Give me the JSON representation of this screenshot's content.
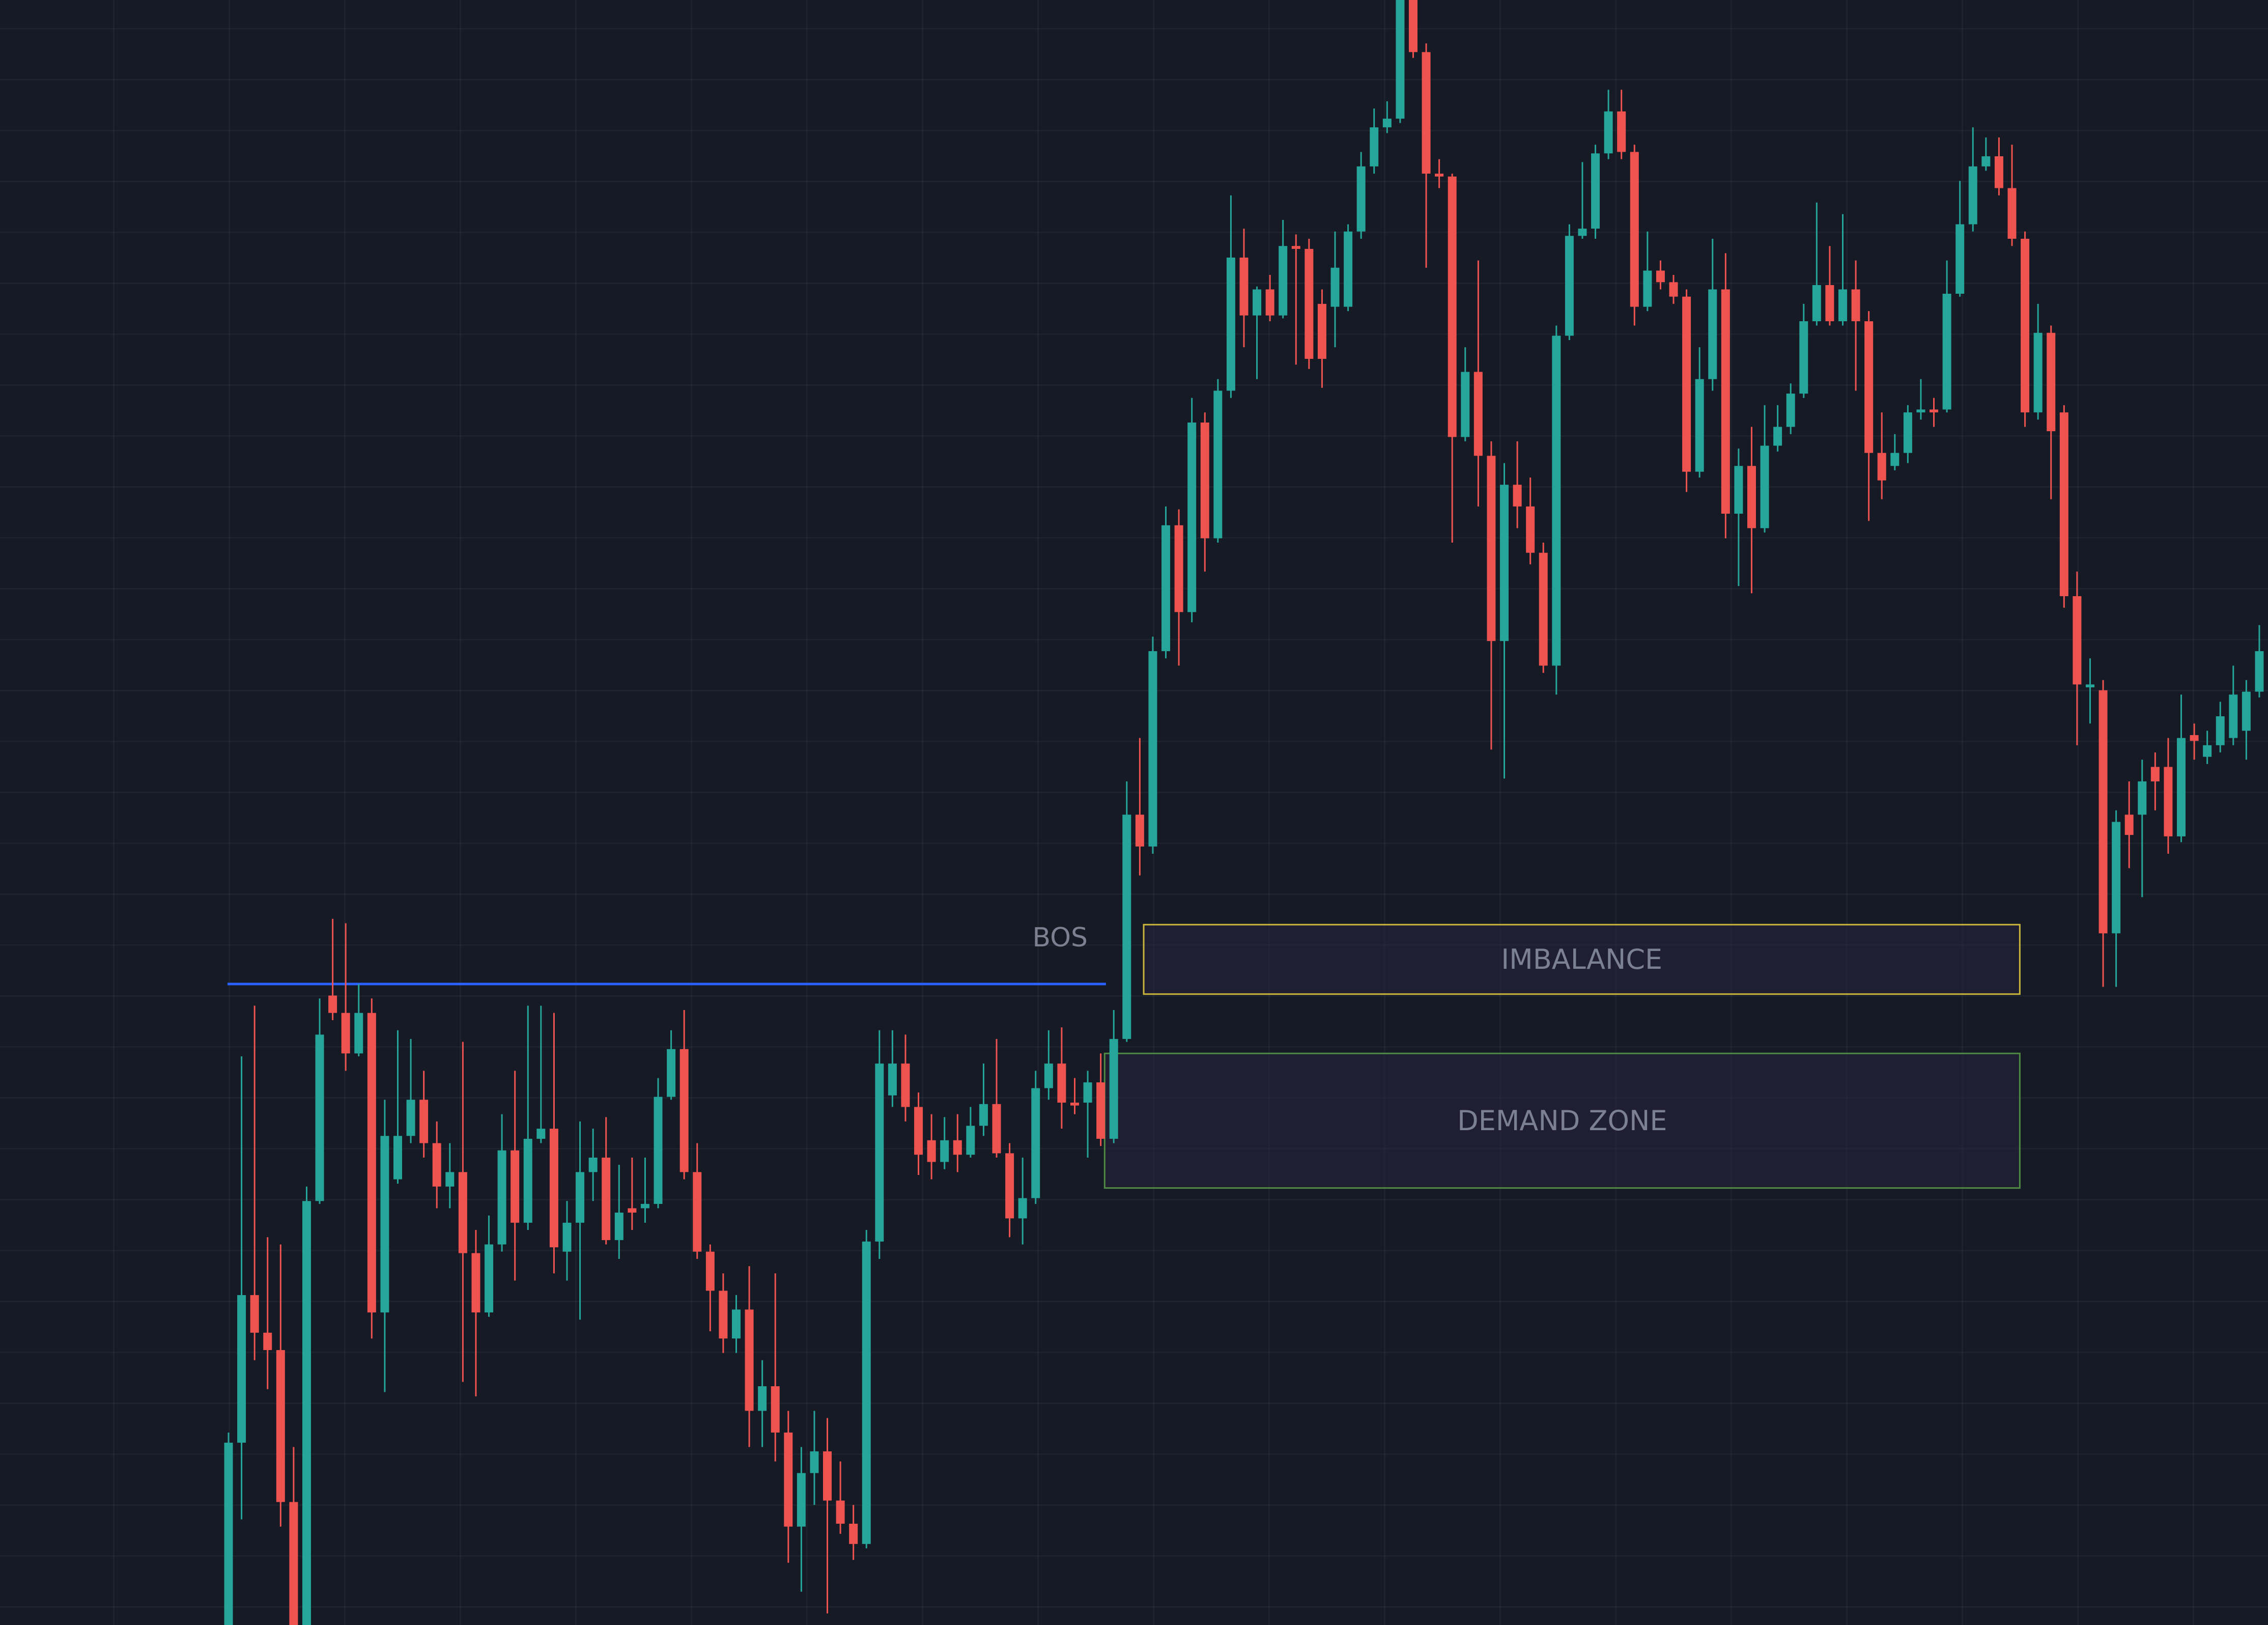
{
  "chart_data": {
    "type": "candlestick",
    "up_color": "#26a69a",
    "down_color": "#ef5350",
    "ylim": [
      0,
      1123
    ],
    "open": [
      0,
      126,
      228,
      202,
      190,
      85,
      0,
      293,
      435,
      423,
      395,
      423,
      216,
      308,
      338,
      363,
      333,
      303,
      313,
      257,
      216,
      263,
      328,
      278,
      336,
      343,
      258,
      278,
      313,
      323,
      266,
      288,
      288,
      291,
      365,
      398,
      313,
      258,
      231,
      198,
      218,
      148,
      165,
      133,
      68,
      105,
      120,
      86,
      70,
      56,
      265,
      366,
      388,
      358,
      335,
      320,
      335,
      325,
      345,
      360,
      326,
      281,
      295,
      371,
      388,
      361,
      361,
      375,
      336,
      405,
      560,
      538,
      673,
      760,
      700,
      831,
      751,
      853,
      945,
      905,
      923,
      905,
      953,
      951,
      913,
      911,
      911,
      963,
      1008,
      1035,
      1041,
      1128,
      1087,
      1003,
      1001,
      821,
      866,
      808,
      680,
      788,
      773,
      741,
      663,
      891,
      960,
      965,
      1017,
      1046,
      1018,
      911,
      936,
      928,
      918,
      797,
      861,
      923,
      768,
      801,
      758,
      815,
      828,
      851,
      901,
      926,
      901,
      923,
      901,
      810,
      801,
      810,
      838,
      840,
      840,
      920,
      968,
      1008,
      1015,
      993,
      958,
      838,
      893,
      838,
      711,
      648,
      646,
      478,
      560,
      560,
      593,
      593,
      545,
      615,
      600,
      608,
      613,
      618,
      645
    ],
    "high": [
      133,
      393,
      428,
      268,
      263,
      123,
      303,
      433,
      488,
      485,
      443,
      433,
      363,
      411,
      405,
      383,
      348,
      333,
      403,
      273,
      283,
      353,
      383,
      428,
      428,
      423,
      293,
      348,
      343,
      351,
      318,
      323,
      323,
      378,
      411,
      425,
      333,
      263,
      243,
      228,
      248,
      183,
      243,
      148,
      123,
      148,
      143,
      113,
      83,
      273,
      411,
      411,
      408,
      368,
      353,
      351,
      353,
      358,
      388,
      405,
      333,
      323,
      383,
      411,
      413,
      378,
      383,
      395,
      425,
      583,
      613,
      683,
      773,
      771,
      848,
      838,
      861,
      988,
      965,
      925,
      933,
      971,
      961,
      958,
      923,
      963,
      968,
      1018,
      1048,
      1053,
      1160,
      1140,
      1093,
      1013,
      1003,
      883,
      943,
      818,
      803,
      818,
      793,
      748,
      898,
      968,
      1011,
      1023,
      1061,
      1061,
      1023,
      963,
      943,
      933,
      923,
      883,
      958,
      948,
      813,
      828,
      843,
      843,
      858,
      913,
      983,
      953,
      975,
      943,
      908,
      838,
      823,
      843,
      861,
      848,
      943,
      998,
      1035,
      1028,
      1028,
      1023,
      963,
      913,
      898,
      843,
      728,
      668,
      653,
      563,
      583,
      598,
      603,
      613,
      643,
      623,
      618,
      638,
      663,
      653,
      691
    ],
    "low": [
      0,
      73,
      183,
      163,
      68,
      0,
      0,
      291,
      418,
      383,
      393,
      198,
      161,
      305,
      333,
      323,
      288,
      288,
      168,
      158,
      213,
      258,
      238,
      273,
      333,
      243,
      238,
      211,
      293,
      263,
      253,
      273,
      278,
      288,
      363,
      308,
      253,
      203,
      188,
      188,
      123,
      123,
      113,
      43,
      23,
      83,
      8,
      63,
      45,
      53,
      253,
      358,
      348,
      311,
      308,
      315,
      313,
      323,
      338,
      323,
      268,
      263,
      291,
      363,
      343,
      353,
      323,
      331,
      333,
      403,
      518,
      533,
      668,
      663,
      693,
      728,
      748,
      848,
      883,
      861,
      901,
      903,
      871,
      868,
      855,
      883,
      908,
      958,
      1003,
      1031,
      1038,
      1083,
      938,
      993,
      748,
      818,
      773,
      605,
      585,
      758,
      733,
      658,
      643,
      888,
      958,
      958,
      1013,
      1013,
      898,
      908,
      923,
      913,
      783,
      793,
      853,
      751,
      718,
      713,
      755,
      811,
      823,
      848,
      898,
      898,
      898,
      853,
      763,
      778,
      798,
      803,
      833,
      828,
      838,
      918,
      963,
      1005,
      988,
      953,
      828,
      833,
      778,
      703,
      608,
      623,
      441,
      441,
      523,
      503,
      563,
      533,
      541,
      598,
      595,
      603,
      608,
      598,
      641
    ],
    "close": [
      126,
      228,
      202,
      190,
      85,
      0,
      293,
      408,
      423,
      395,
      423,
      216,
      338,
      338,
      363,
      333,
      303,
      313,
      257,
      216,
      263,
      328,
      278,
      336,
      343,
      261,
      278,
      313,
      323,
      266,
      285,
      285,
      291,
      365,
      398,
      313,
      258,
      231,
      198,
      218,
      148,
      165,
      133,
      68,
      105,
      120,
      86,
      70,
      56,
      265,
      388,
      388,
      358,
      325,
      320,
      335,
      325,
      345,
      360,
      326,
      281,
      295,
      371,
      388,
      361,
      359,
      375,
      336,
      405,
      560,
      538,
      673,
      760,
      700,
      831,
      751,
      853,
      945,
      905,
      923,
      905,
      953,
      951,
      875,
      875,
      938,
      963,
      1008,
      1035,
      1041,
      1130,
      1087,
      1003,
      1001,
      821,
      866,
      808,
      680,
      788,
      773,
      741,
      663,
      891,
      960,
      965,
      1017,
      1046,
      1018,
      911,
      936,
      928,
      918,
      797,
      861,
      923,
      768,
      801,
      758,
      815,
      828,
      851,
      901,
      926,
      901,
      923,
      901,
      810,
      791,
      810,
      838,
      840,
      838,
      920,
      968,
      1008,
      1015,
      993,
      958,
      838,
      893,
      825,
      711,
      650,
      650,
      478,
      555,
      546,
      583,
      583,
      545,
      613,
      611,
      608,
      628,
      643,
      645,
      673
    ],
    "annotations": {
      "bos": {
        "label": "BOS",
        "level": 443,
        "color": "#2962ff"
      },
      "imbalance": {
        "label": "IMBALANCE",
        "low": 436,
        "high": 484,
        "color": "#c9b43c"
      },
      "demand_zone": {
        "label": "DEMAND ZONE",
        "low": 302,
        "high": 395,
        "color": "#4e8a43"
      }
    }
  }
}
